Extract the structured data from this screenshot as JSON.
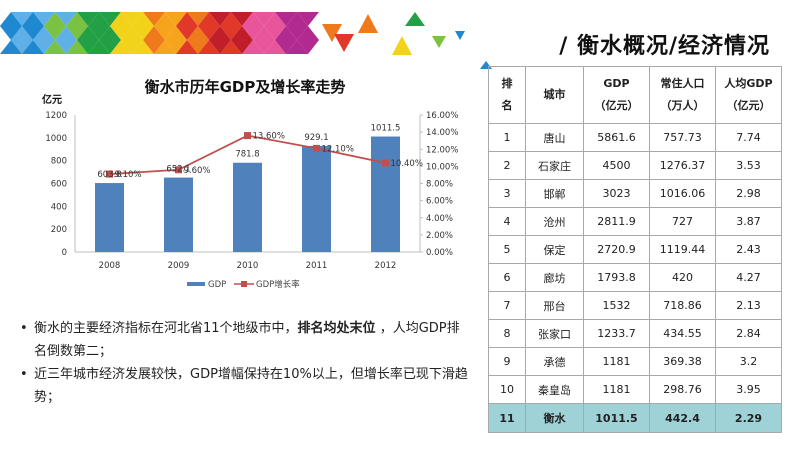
{
  "slide": {
    "title": "/ 衡水概况/经济情况"
  },
  "banner": {
    "colors": [
      "#1e88d0",
      "#5fb0e6",
      "#7cc242",
      "#23a046",
      "#f3d21a",
      "#f7a41d",
      "#ee7a1c",
      "#e2382a",
      "#c01e2a",
      "#e8559a",
      "#b02a8f",
      "#d43f7a"
    ],
    "icon": "colorful-triangle-banner"
  },
  "chart_data": {
    "type": "bar+line",
    "title": "衡水市历年GDP及增长率走势",
    "ylabel": "亿元",
    "categories": [
      "2008",
      "2009",
      "2010",
      "2011",
      "2012"
    ],
    "ylim": [
      0,
      1200
    ],
    "yticks": [
      "0",
      "200",
      "400",
      "600",
      "800",
      "1000",
      "1200"
    ],
    "y2lim": [
      0,
      16
    ],
    "y2ticks": [
      "0.00%",
      "2.00%",
      "4.00%",
      "6.00%",
      "8.00%",
      "10.00%",
      "12.00%",
      "14.00%",
      "16.00%"
    ],
    "series": [
      {
        "name": "GDP",
        "type": "bar",
        "axis": "left",
        "color": "#4f81bd",
        "values": [
          603.8,
          652.1,
          781.8,
          929.1,
          1011.5
        ],
        "labels": [
          "603.8",
          "652.1",
          "781.8",
          "929.1",
          "1011.5"
        ]
      },
      {
        "name": "GDP增长率",
        "type": "line",
        "axis": "right",
        "color": "#c0504d",
        "values": [
          9.1,
          9.6,
          13.6,
          12.1,
          10.4
        ],
        "labels": [
          "9.10%",
          "9.60%",
          "13.60%",
          "12.10%",
          "10.40%"
        ]
      }
    ],
    "legend": "bottom",
    "grid": false
  },
  "bullets": [
    {
      "before": "衡水的主要经济指标在河北省11个地级市中，",
      "bold": "排名均处末位",
      "after": " ，人均GDP排名倒数第二；"
    },
    {
      "before": "近三年城市经济发展较快，GDP增幅保持在10%以上，但增长率已现下滑趋势；",
      "bold": "",
      "after": ""
    }
  ],
  "table": {
    "headers": [
      "排名",
      "城市",
      "GDP（亿元）",
      "常住人口（万人）",
      "人均GDP（亿元）"
    ],
    "header_lines": [
      [
        "排",
        "名"
      ],
      [
        "城市"
      ],
      [
        "GDP",
        "（亿元）"
      ],
      [
        "常住人口",
        "（万人）"
      ],
      [
        "人均GDP",
        "（亿元）"
      ]
    ],
    "rows": [
      [
        "1",
        "唐山",
        "5861.6",
        "757.73",
        "7.74"
      ],
      [
        "2",
        "石家庄",
        "4500",
        "1276.37",
        "3.53"
      ],
      [
        "3",
        "邯郸",
        "3023",
        "1016.06",
        "2.98"
      ],
      [
        "4",
        "沧州",
        "2811.9",
        "727",
        "3.87"
      ],
      [
        "5",
        "保定",
        "2720.9",
        "1119.44",
        "2.43"
      ],
      [
        "6",
        "廊坊",
        "1793.8",
        "420",
        "4.27"
      ],
      [
        "7",
        "邢台",
        "1532",
        "718.86",
        "2.13"
      ],
      [
        "8",
        "张家口",
        "1233.7",
        "434.55",
        "2.84"
      ],
      [
        "9",
        "承德",
        "1181",
        "369.38",
        "3.2"
      ],
      [
        "10",
        "秦皇岛",
        "1181",
        "298.76",
        "3.95"
      ]
    ],
    "highlight_row": [
      "11",
      "衡水",
      "1011.5",
      "442.4",
      "2.29"
    ],
    "highlight_color": "#9fd2d6"
  }
}
